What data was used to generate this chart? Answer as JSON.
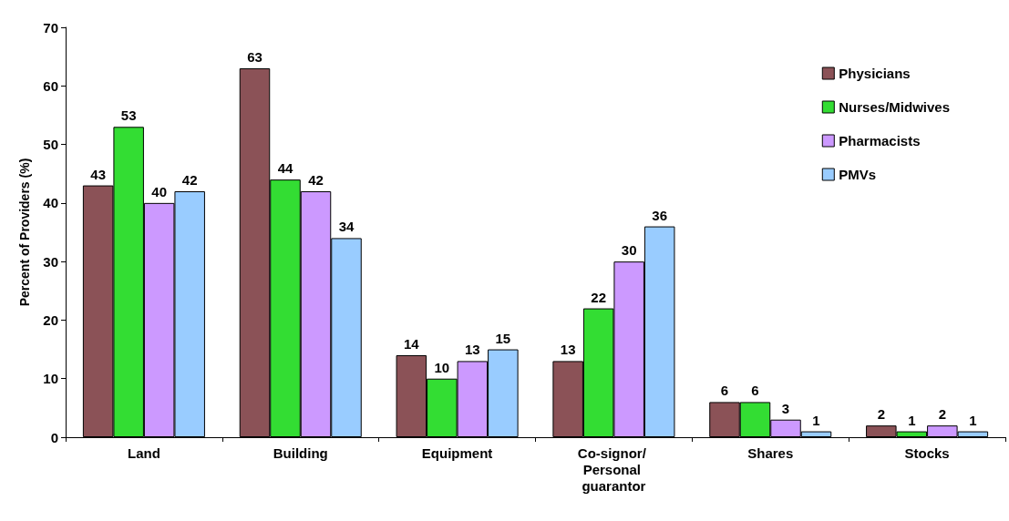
{
  "chart_data": {
    "type": "bar",
    "ylabel": "Percent of Providers (%)",
    "categories": [
      "Land",
      "Building",
      "Equipment",
      "Co-signor/ Personal guarantor",
      "Shares",
      "Stocks"
    ],
    "series": [
      {
        "name": "Physicians",
        "color": "#8b5257",
        "values": [
          43,
          63,
          14,
          13,
          6,
          2
        ]
      },
      {
        "name": "Nurses/Midwives",
        "color": "#33dd33",
        "values": [
          53,
          44,
          10,
          22,
          6,
          1
        ]
      },
      {
        "name": "Pharmacists",
        "color": "#cc99ff",
        "values": [
          40,
          42,
          13,
          30,
          3,
          2
        ]
      },
      {
        "name": "PMVs",
        "color": "#99ccff",
        "values": [
          42,
          34,
          15,
          36,
          1,
          1
        ]
      }
    ],
    "ylim": [
      0,
      70
    ],
    "yticks": [
      0,
      10,
      20,
      30,
      40,
      50,
      60,
      70
    ],
    "grid": false,
    "legend": "top right",
    "data_labels": true
  }
}
